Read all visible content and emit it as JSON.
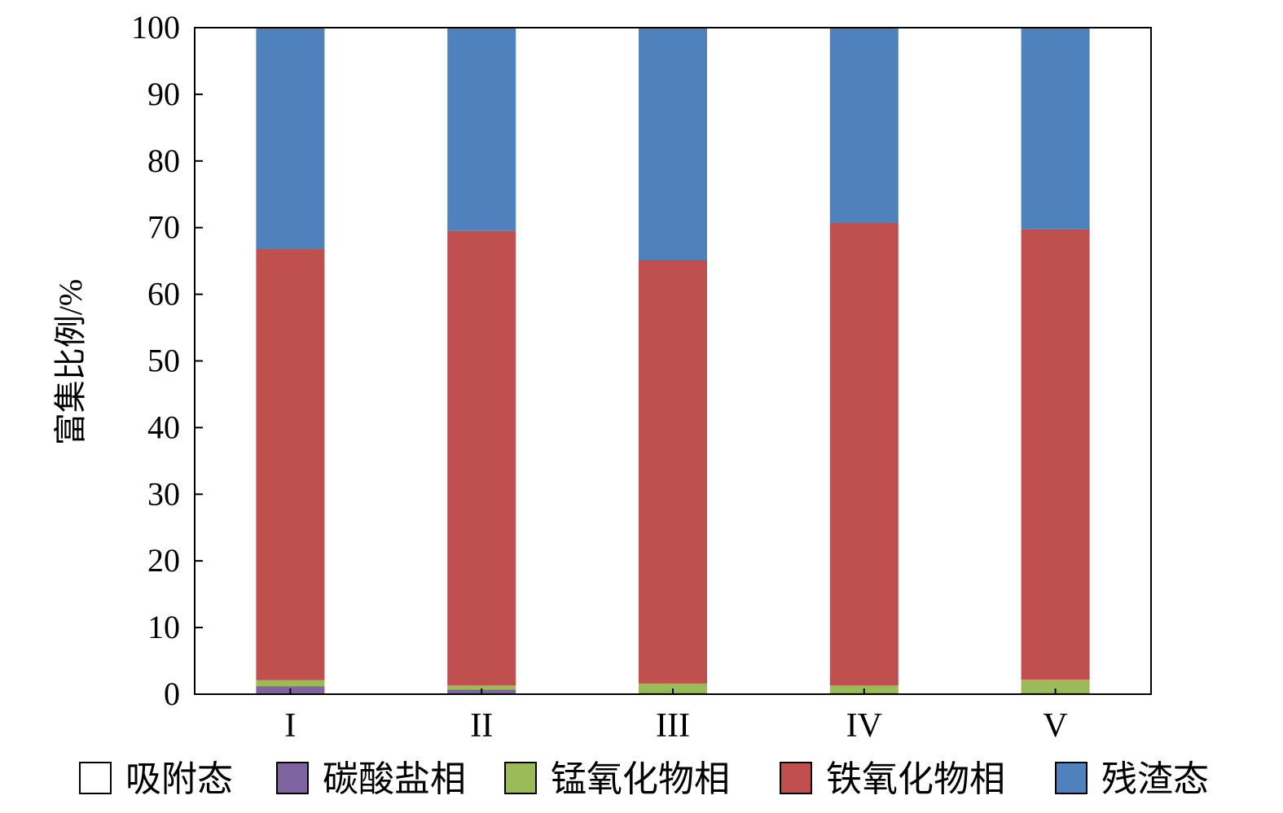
{
  "chart_data": {
    "type": "bar",
    "stacked": true,
    "categories": [
      "I",
      "II",
      "III",
      "IV",
      "V"
    ],
    "ylabel": "富集比例/%",
    "ylim": [
      0,
      100
    ],
    "yticks": [
      0,
      10,
      20,
      30,
      40,
      50,
      60,
      70,
      80,
      90,
      100
    ],
    "grid": false,
    "legend_position": "bottom",
    "series": [
      {
        "name": "吸附态",
        "color": "#ffffff",
        "values": [
          0.1,
          0.1,
          0.1,
          0.1,
          0.1
        ]
      },
      {
        "name": "碳酸盐相",
        "color": "#8064a2",
        "values": [
          1.1,
          0.6,
          0.1,
          0.1,
          0.1
        ]
      },
      {
        "name": "锰氧化物相",
        "color": "#9bbb59",
        "values": [
          0.9,
          0.6,
          1.4,
          1.1,
          2.0
        ]
      },
      {
        "name": "铁氧化物相",
        "color": "#c0504d",
        "values": [
          64.8,
          68.2,
          63.6,
          69.4,
          67.6
        ]
      },
      {
        "name": "残渣态",
        "color": "#4f81bd",
        "values": [
          33.1,
          30.5,
          34.8,
          29.3,
          30.2
        ]
      }
    ]
  }
}
